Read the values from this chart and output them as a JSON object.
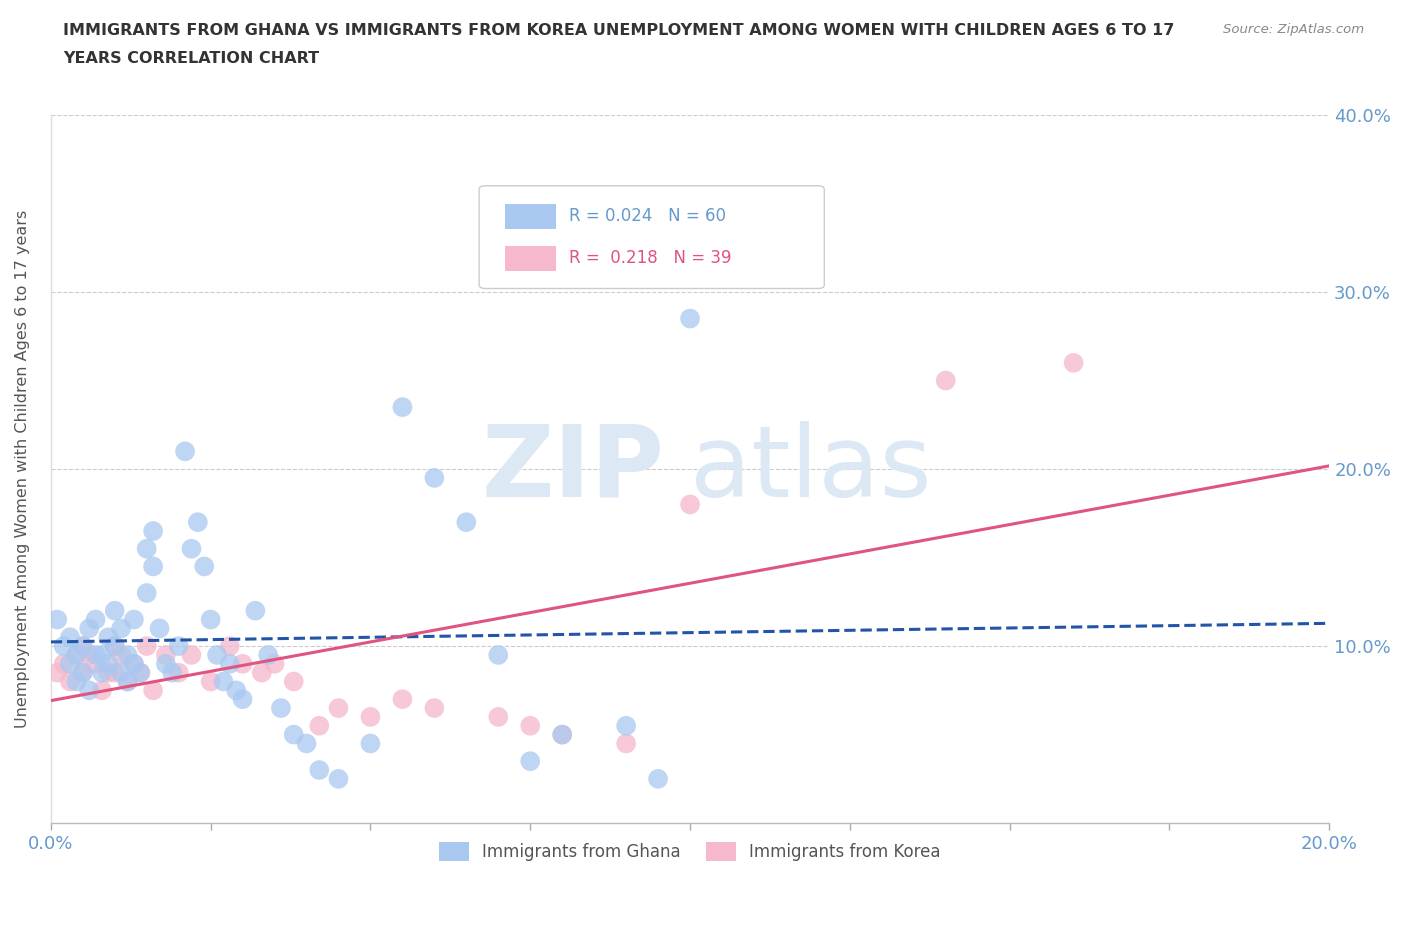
{
  "title_line1": "IMMIGRANTS FROM GHANA VS IMMIGRANTS FROM KOREA UNEMPLOYMENT AMONG WOMEN WITH CHILDREN AGES 6 TO 17",
  "title_line2": "YEARS CORRELATION CHART",
  "source": "Source: ZipAtlas.com",
  "ylabel": "Unemployment Among Women with Children Ages 6 to 17 years",
  "ghana_R": 0.024,
  "ghana_N": 60,
  "korea_R": 0.218,
  "korea_N": 39,
  "ghana_color": "#a8c8f0",
  "korea_color": "#f5b8cc",
  "ghana_line_color": "#2255aa",
  "korea_line_color": "#e05580",
  "xlim": [
    0,
    0.2
  ],
  "ylim": [
    0,
    0.4
  ],
  "xtick_positions": [
    0.0,
    0.025,
    0.05,
    0.075,
    0.1,
    0.125,
    0.15,
    0.175,
    0.2
  ],
  "xtick_labels_show": [
    true,
    false,
    false,
    false,
    false,
    false,
    false,
    false,
    true
  ],
  "xtick_labels": [
    "0.0%",
    "",
    "",
    "",
    "",
    "",
    "",
    "",
    "20.0%"
  ],
  "yticks": [
    0.0,
    0.1,
    0.2,
    0.3,
    0.4
  ],
  "ytick_labels": [
    "",
    "10.0%",
    "20.0%",
    "30.0%",
    "40.0%"
  ],
  "grid_color": "#cccccc",
  "background_color": "#ffffff",
  "watermark_zip": "ZIP",
  "watermark_atlas": "atlas",
  "axis_label_color": "#6699cc",
  "ghana_x": [
    0.001,
    0.002,
    0.003,
    0.003,
    0.004,
    0.004,
    0.005,
    0.005,
    0.006,
    0.006,
    0.007,
    0.007,
    0.008,
    0.008,
    0.009,
    0.009,
    0.01,
    0.01,
    0.011,
    0.011,
    0.012,
    0.012,
    0.013,
    0.013,
    0.014,
    0.015,
    0.015,
    0.016,
    0.016,
    0.017,
    0.018,
    0.019,
    0.02,
    0.021,
    0.022,
    0.023,
    0.024,
    0.025,
    0.026,
    0.027,
    0.028,
    0.029,
    0.03,
    0.032,
    0.034,
    0.036,
    0.038,
    0.04,
    0.042,
    0.045,
    0.05,
    0.055,
    0.06,
    0.065,
    0.07,
    0.075,
    0.08,
    0.09,
    0.095,
    0.1
  ],
  "ghana_y": [
    0.115,
    0.1,
    0.09,
    0.105,
    0.095,
    0.08,
    0.1,
    0.085,
    0.11,
    0.075,
    0.095,
    0.115,
    0.085,
    0.095,
    0.105,
    0.09,
    0.12,
    0.1,
    0.085,
    0.11,
    0.095,
    0.08,
    0.09,
    0.115,
    0.085,
    0.155,
    0.13,
    0.165,
    0.145,
    0.11,
    0.09,
    0.085,
    0.1,
    0.21,
    0.155,
    0.17,
    0.145,
    0.115,
    0.095,
    0.08,
    0.09,
    0.075,
    0.07,
    0.12,
    0.095,
    0.065,
    0.05,
    0.045,
    0.03,
    0.025,
    0.045,
    0.235,
    0.195,
    0.17,
    0.095,
    0.035,
    0.05,
    0.055,
    0.025,
    0.285
  ],
  "korea_x": [
    0.001,
    0.002,
    0.003,
    0.004,
    0.005,
    0.005,
    0.006,
    0.007,
    0.008,
    0.009,
    0.01,
    0.01,
    0.011,
    0.012,
    0.013,
    0.014,
    0.015,
    0.016,
    0.018,
    0.02,
    0.022,
    0.025,
    0.028,
    0.03,
    0.033,
    0.035,
    0.038,
    0.042,
    0.045,
    0.05,
    0.055,
    0.06,
    0.07,
    0.075,
    0.08,
    0.09,
    0.1,
    0.14,
    0.16
  ],
  "korea_y": [
    0.085,
    0.09,
    0.08,
    0.095,
    0.1,
    0.085,
    0.095,
    0.09,
    0.075,
    0.085,
    0.1,
    0.085,
    0.095,
    0.08,
    0.09,
    0.085,
    0.1,
    0.075,
    0.095,
    0.085,
    0.095,
    0.08,
    0.1,
    0.09,
    0.085,
    0.09,
    0.08,
    0.055,
    0.065,
    0.06,
    0.07,
    0.065,
    0.06,
    0.055,
    0.05,
    0.045,
    0.18,
    0.25,
    0.26
  ]
}
